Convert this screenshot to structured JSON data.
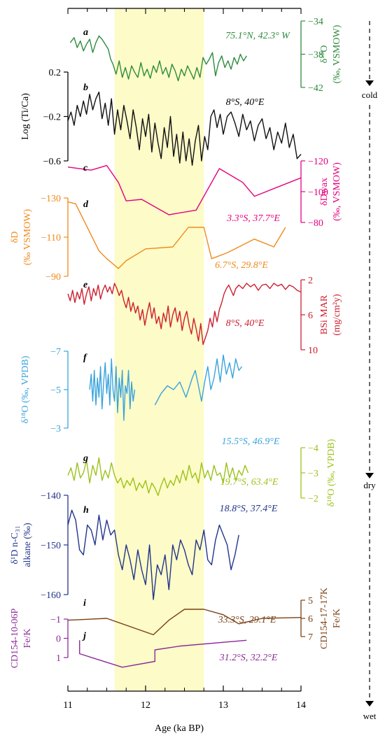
{
  "chart_data": {
    "type": "line",
    "xlabel": "Age (ka BP)",
    "xlim": [
      11,
      14
    ],
    "x_ticks": [
      "11",
      "12",
      "13",
      "14"
    ],
    "shaded_interval": [
      11.6,
      12.75
    ],
    "arrow_labels": [
      "cold",
      "dry",
      "wet"
    ],
    "panels": [
      {
        "id": "a",
        "letter": "a",
        "location": "75.1°N, 42.3° W",
        "ylabel": "δ¹⁸O",
        "unit": "(‰, VSMOW)",
        "ylim": [
          -34,
          -42
        ],
        "ticks": [
          "-34",
          "-38",
          "-42"
        ],
        "side": "right",
        "color": "#2e8b3d",
        "x": [
          11.03,
          11.08,
          11.12,
          11.16,
          11.2,
          11.24,
          11.28,
          11.32,
          11.36,
          11.4,
          11.44,
          11.48,
          11.52,
          11.55,
          11.58,
          11.62,
          11.66,
          11.7,
          11.74,
          11.78,
          11.82,
          11.86,
          11.9,
          11.94,
          11.98,
          12.02,
          12.06,
          12.1,
          12.14,
          12.18,
          12.22,
          12.26,
          12.3,
          12.34,
          12.38,
          12.42,
          12.46,
          12.5,
          12.54,
          12.58,
          12.62,
          12.66,
          12.7,
          12.74,
          12.78,
          12.82,
          12.86,
          12.9,
          12.94,
          12.98,
          13.02,
          13.06,
          13.1,
          13.14,
          13.18,
          13.22,
          13.26,
          13.3
        ],
        "y": [
          -36.6,
          -36.0,
          -37.2,
          -36.4,
          -37.6,
          -36.8,
          -36.2,
          -37.8,
          -36.6,
          -35.8,
          -36.2,
          -36.8,
          -37.4,
          -38.6,
          -39.2,
          -40.4,
          -38.8,
          -40.8,
          -39.6,
          -41.0,
          -39.4,
          -40.2,
          -40.8,
          -39.0,
          -40.6,
          -39.8,
          -40.9,
          -39.4,
          -40.2,
          -38.8,
          -40.4,
          -39.6,
          -40.8,
          -39.2,
          -40.0,
          -41.2,
          -39.8,
          -40.6,
          -39.4,
          -40.2,
          -41.0,
          -39.6,
          -40.8,
          -38.4,
          -39.2,
          -38.6,
          -37.8,
          -40.6,
          -39.0,
          -38.2,
          -39.6,
          -38.8,
          -39.8,
          -38.4,
          -39.2,
          -38.0,
          -38.8,
          -38.2
        ]
      },
      {
        "id": "b",
        "letter": "b",
        "location": "8°S, 40°E",
        "ylabel": "Log (Ti/Ca)",
        "unit": "",
        "ylim": [
          0.2,
          -0.6
        ],
        "ticks": [
          "0.2",
          "-0.2",
          "-0.6"
        ],
        "side": "left",
        "color": "#111111",
        "x": [
          11.0,
          11.04,
          11.08,
          11.12,
          11.16,
          11.2,
          11.24,
          11.28,
          11.32,
          11.36,
          11.4,
          11.44,
          11.48,
          11.52,
          11.56,
          11.6,
          11.64,
          11.68,
          11.72,
          11.76,
          11.8,
          11.84,
          11.88,
          11.92,
          11.96,
          12.0,
          12.04,
          12.08,
          12.12,
          12.16,
          12.2,
          12.24,
          12.28,
          12.32,
          12.36,
          12.4,
          12.44,
          12.48,
          12.52,
          12.56,
          12.6,
          12.64,
          12.68,
          12.72,
          12.76,
          12.8,
          12.84,
          12.88,
          12.92,
          12.96,
          13.0,
          13.05,
          13.1,
          13.15,
          13.2,
          13.25,
          13.3,
          13.35,
          13.4,
          13.45,
          13.5,
          13.55,
          13.6,
          13.65,
          13.7,
          13.75,
          13.8,
          13.85,
          13.9,
          13.95,
          14.0
        ],
        "y": [
          -0.24,
          -0.16,
          -0.28,
          -0.1,
          -0.2,
          -0.06,
          -0.18,
          0.0,
          -0.14,
          -0.04,
          0.02,
          -0.22,
          -0.08,
          -0.28,
          -0.04,
          -0.36,
          -0.14,
          -0.32,
          -0.1,
          -0.24,
          -0.4,
          -0.14,
          -0.3,
          -0.5,
          -0.22,
          -0.38,
          -0.18,
          -0.52,
          -0.26,
          -0.44,
          -0.58,
          -0.3,
          -0.48,
          -0.2,
          -0.56,
          -0.36,
          -0.62,
          -0.34,
          -0.6,
          -0.4,
          -0.64,
          -0.42,
          -0.28,
          -0.6,
          -0.38,
          -0.5,
          -0.2,
          -0.14,
          -0.3,
          -0.18,
          -0.36,
          -0.2,
          -0.16,
          -0.26,
          -0.38,
          -0.18,
          -0.32,
          -0.24,
          -0.42,
          -0.28,
          -0.22,
          -0.4,
          -0.3,
          -0.5,
          -0.34,
          -0.44,
          -0.26,
          -0.48,
          -0.36,
          -0.58,
          -0.54
        ]
      },
      {
        "id": "c",
        "letter": "c",
        "location": "3.3°S, 37.7°E",
        "ylabel": "δDwax",
        "unit": "(‰, VSMOW)",
        "ylim": [
          -120,
          -80
        ],
        "ticks": [
          "-120",
          "-100",
          "-80"
        ],
        "side": "right",
        "color": "#e6007e",
        "x": [
          11.0,
          11.3,
          11.5,
          11.65,
          11.75,
          11.95,
          12.3,
          12.65,
          12.95,
          13.25,
          13.4,
          13.75,
          14.0
        ],
        "y": [
          -116,
          -114,
          -117,
          -106,
          -94,
          -95,
          -85,
          -88,
          -115,
          -106,
          -97,
          -104,
          -109
        ]
      },
      {
        "id": "d",
        "letter": "d",
        "location": "6.7°S, 29.8°E",
        "ylabel": "δD",
        "unit": "(‰ VSMOW)",
        "ylim": [
          -130,
          -90
        ],
        "ticks": [
          "-130",
          "-110",
          "-90"
        ],
        "side": "left",
        "color": "#f08a1c",
        "x": [
          11.0,
          11.1,
          11.4,
          11.5,
          11.65,
          11.75,
          12.0,
          12.35,
          12.55,
          12.75,
          12.85,
          13.05,
          13.4,
          13.65,
          13.8
        ],
        "y": [
          -128,
          -127,
          -103,
          -99,
          -94,
          -98,
          -104,
          -105,
          -115,
          -115,
          -99,
          -102,
          -109,
          -105,
          -115
        ]
      },
      {
        "id": "e",
        "letter": "e",
        "location": "8°S, 40°E",
        "ylabel": "BSi MAR",
        "unit": "(mg/cm²y)",
        "ylim": [
          2,
          10
        ],
        "ticks": [
          "2",
          "6",
          "10"
        ],
        "side": "right",
        "color": "#cc1f2f",
        "x": [
          11.0,
          11.03,
          11.06,
          11.09,
          11.12,
          11.15,
          11.18,
          11.21,
          11.24,
          11.27,
          11.3,
          11.33,
          11.36,
          11.39,
          11.42,
          11.45,
          11.48,
          11.51,
          11.54,
          11.57,
          11.6,
          11.63,
          11.66,
          11.69,
          11.72,
          11.75,
          11.78,
          11.81,
          11.84,
          11.87,
          11.9,
          11.93,
          11.96,
          11.99,
          12.02,
          12.05,
          12.08,
          12.11,
          12.14,
          12.17,
          12.2,
          12.23,
          12.26,
          12.29,
          12.32,
          12.35,
          12.38,
          12.41,
          12.44,
          12.47,
          12.5,
          12.53,
          12.56,
          12.59,
          12.62,
          12.65,
          12.68,
          12.71,
          12.74,
          12.77,
          12.8,
          12.83,
          12.86,
          12.89,
          12.92,
          12.95,
          12.98,
          13.01,
          13.04,
          13.07,
          13.1,
          13.13,
          13.16,
          13.2,
          13.25,
          13.3,
          13.35,
          13.4,
          13.45,
          13.5,
          13.55,
          13.6,
          13.65,
          13.7,
          13.75,
          13.8,
          13.85,
          13.9,
          13.95,
          14.0
        ],
        "y": [
          3.6,
          4.4,
          3.2,
          4.6,
          3.4,
          4.2,
          3.0,
          4.8,
          3.6,
          2.8,
          4.4,
          3.0,
          3.8,
          2.6,
          4.2,
          3.2,
          2.6,
          3.4,
          2.8,
          3.6,
          2.4,
          3.0,
          3.8,
          3.2,
          4.4,
          5.2,
          4.0,
          5.6,
          4.6,
          5.8,
          5.0,
          6.6,
          5.4,
          7.2,
          5.8,
          4.6,
          6.4,
          5.2,
          7.0,
          6.2,
          7.6,
          5.8,
          6.8,
          5.0,
          7.4,
          6.0,
          5.2,
          6.8,
          5.6,
          7.8,
          6.4,
          5.6,
          7.2,
          8.2,
          6.4,
          7.6,
          9.0,
          7.0,
          9.4,
          8.6,
          7.8,
          6.4,
          7.4,
          5.6,
          6.8,
          5.4,
          4.6,
          3.6,
          3.0,
          2.6,
          3.2,
          3.8,
          3.0,
          2.6,
          3.0,
          2.4,
          2.8,
          2.5,
          3.2,
          2.6,
          2.5,
          3.0,
          2.4,
          2.7,
          2.5,
          3.1,
          2.6,
          2.8,
          3.2,
          3.4
        ]
      },
      {
        "id": "f",
        "letter": "f",
        "location": "15.5°S, 46.9°E",
        "ylabel": "δ¹⁸O (‰, VPDB)",
        "unit": "",
        "ylim": [
          -7,
          -3
        ],
        "ticks": [
          "-7",
          "-5",
          "-3"
        ],
        "side": "left",
        "color": "#3aa3dc",
        "segments": [
          {
            "x": [
              11.28,
              11.3,
              11.32,
              11.34,
              11.36,
              11.38,
              11.4,
              11.42,
              11.44,
              11.46,
              11.48,
              11.5,
              11.52,
              11.54,
              11.56,
              11.58,
              11.6,
              11.62,
              11.64,
              11.66,
              11.68,
              11.7,
              11.72,
              11.74,
              11.76,
              11.78,
              11.8,
              11.82,
              11.84,
              11.86
            ],
            "y": [
              -5.0,
              -5.8,
              -4.4,
              -6.0,
              -4.2,
              -5.6,
              -4.6,
              -6.2,
              -4.0,
              -5.4,
              -6.4,
              -4.8,
              -5.8,
              -4.2,
              -6.6,
              -5.0,
              -4.4,
              -6.2,
              -3.8,
              -5.6,
              -4.6,
              -6.0,
              -3.4,
              -5.2,
              -4.8,
              -6.0,
              -4.0,
              -5.4,
              -4.4,
              -5.0
            ]
          },
          {
            "x": [
              12.12,
              12.2,
              12.28,
              12.36,
              12.44,
              12.52,
              12.6,
              12.64,
              12.68,
              12.72,
              12.76,
              12.8,
              12.84,
              12.88,
              12.92,
              12.96,
              13.0,
              13.04,
              13.08,
              13.12,
              13.16,
              13.2,
              13.24
            ],
            "y": [
              -4.2,
              -4.8,
              -5.2,
              -5.0,
              -5.4,
              -4.6,
              -5.6,
              -6.0,
              -5.2,
              -4.4,
              -5.4,
              -6.2,
              -5.0,
              -5.6,
              -6.6,
              -5.4,
              -6.8,
              -5.8,
              -6.4,
              -5.6,
              -6.6,
              -6.0,
              -6.2
            ]
          }
        ]
      },
      {
        "id": "g",
        "letter": "g",
        "location": "19.7°S, 63.4°E",
        "ylabel": "δ¹⁸O (‰, VPDB)",
        "unit": "",
        "ylim": [
          -4,
          -2
        ],
        "ticks": [
          "-4",
          "-3",
          "-2"
        ],
        "side": "right",
        "color": "#9cc21a",
        "x": [
          11.0,
          11.04,
          11.08,
          11.12,
          11.16,
          11.2,
          11.24,
          11.28,
          11.32,
          11.36,
          11.4,
          11.44,
          11.48,
          11.52,
          11.56,
          11.6,
          11.64,
          11.68,
          11.72,
          11.76,
          11.8,
          11.84,
          11.88,
          11.92,
          11.96,
          12.0,
          12.04,
          12.08,
          12.12,
          12.16,
          12.2,
          12.24,
          12.28,
          12.32,
          12.36,
          12.4,
          12.44,
          12.48,
          12.52,
          12.56,
          12.6,
          12.64,
          12.68,
          12.72,
          12.76,
          12.8,
          12.84,
          12.88,
          12.92,
          12.96,
          13.0,
          13.04,
          13.08,
          13.12,
          13.16,
          13.2,
          13.24,
          13.28,
          13.32
        ],
        "y": [
          -2.9,
          -3.2,
          -2.7,
          -3.4,
          -2.8,
          -3.0,
          -3.5,
          -2.6,
          -3.3,
          -2.9,
          -3.6,
          -2.7,
          -3.1,
          -2.8,
          -3.4,
          -2.9,
          -2.6,
          -2.8,
          -2.4,
          -2.7,
          -2.5,
          -2.8,
          -2.3,
          -2.6,
          -2.4,
          -2.7,
          -2.2,
          -2.6,
          -2.4,
          -2.1,
          -2.5,
          -2.8,
          -2.4,
          -2.7,
          -2.5,
          -2.9,
          -2.6,
          -3.1,
          -2.7,
          -3.3,
          -2.8,
          -3.0,
          -2.6,
          -3.4,
          -2.8,
          -3.1,
          -2.7,
          -3.3,
          -2.9,
          -3.0,
          -2.6,
          -3.4,
          -2.8,
          -3.2,
          -2.7,
          -3.1,
          -2.9,
          -3.3,
          -3.0
        ]
      },
      {
        "id": "h",
        "letter": "h",
        "location": "18.8°S, 37.4°E",
        "ylabel": "δ¹D n-C₃₁",
        "unit": "alkane (‰)",
        "ylim": [
          -140,
          -160
        ],
        "ticks": [
          "-140",
          "-150",
          "-160"
        ],
        "side": "left",
        "color": "#22358a",
        "x": [
          11.0,
          11.05,
          11.1,
          11.15,
          11.2,
          11.25,
          11.3,
          11.35,
          11.4,
          11.45,
          11.5,
          11.55,
          11.6,
          11.65,
          11.7,
          11.75,
          11.8,
          11.85,
          11.9,
          11.95,
          12.0,
          12.05,
          12.1,
          12.15,
          12.2,
          12.25,
          12.3,
          12.35,
          12.4,
          12.45,
          12.5,
          12.55,
          12.6,
          12.65,
          12.7,
          12.75,
          12.8,
          12.85,
          12.9,
          12.95,
          13.0,
          13.05,
          13.1,
          13.15,
          13.2
        ],
        "y": [
          -146,
          -143,
          -145,
          -151,
          -152,
          -146,
          -147,
          -150,
          -144,
          -149,
          -145,
          -148,
          -147,
          -152,
          -155,
          -150,
          -153,
          -157,
          -151,
          -155,
          -158,
          -150,
          -161,
          -154,
          -156,
          -152,
          -159,
          -150,
          -153,
          -149,
          -151,
          -154,
          -156,
          -149,
          -151,
          -147,
          -153,
          -154,
          -149,
          -146,
          -148,
          -150,
          -155,
          -152,
          -148
        ]
      },
      {
        "id": "i",
        "letter": "i",
        "location": "33.3°S, 29.1°E",
        "ylabel": "CD154-17-17K",
        "unit": "Fe/K",
        "ylim": [
          5,
          7
        ],
        "ticks": [
          "5",
          "6",
          "7"
        ],
        "side": "right",
        "color": "#7a3f12",
        "x": [
          11.0,
          11.5,
          12.1,
          12.3,
          12.5,
          12.75,
          13.0,
          13.2,
          13.5,
          14.0
        ],
        "y": [
          6.1,
          6.0,
          6.9,
          6.1,
          5.5,
          5.5,
          5.8,
          6.3,
          6.0,
          5.95
        ]
      },
      {
        "id": "j",
        "letter": "j",
        "location": "31.2°S, 32.2°E",
        "ylabel": "CD154-10-06P",
        "unit": "Fe/K",
        "ylim": [
          -1,
          1
        ],
        "ticks": [
          "-1",
          "0",
          "1"
        ],
        "side": "left",
        "color": "#8b2c96",
        "x": [
          11.15,
          11.15,
          11.7,
          12.12,
          12.12,
          12.45,
          13.3
        ],
        "y": [
          0.1,
          0.8,
          1.5,
          1.2,
          0.6,
          0.4,
          0.1
        ]
      }
    ]
  }
}
